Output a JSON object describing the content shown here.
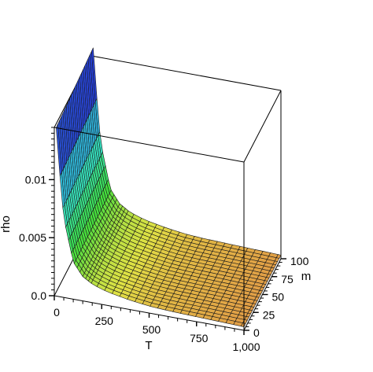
{
  "chart_data": {
    "type": "surface",
    "title": "",
    "function": "rho(T, m) — decays with T, nearly flat in m",
    "x_axis": {
      "label": "T",
      "range": [
        0,
        1000
      ],
      "ticks": [
        0,
        250,
        500,
        750,
        1000
      ],
      "tick_labels": [
        "0",
        "250",
        "500",
        "750",
        "1,000"
      ]
    },
    "y_axis": {
      "label": "m",
      "range": [
        0,
        100
      ],
      "ticks": [
        0,
        25,
        50,
        75,
        100
      ],
      "tick_labels": [
        "0",
        "25",
        "50",
        "75",
        "100"
      ]
    },
    "z_axis": {
      "label": "rho",
      "range": [
        0,
        0.0145
      ],
      "ticks": [
        0,
        0.005,
        0.01
      ],
      "tick_labels": [
        "0.0",
        "0.005",
        "0.01"
      ]
    },
    "sample_profile": {
      "T": [
        10,
        25,
        50,
        100,
        150,
        200,
        250,
        300,
        400,
        500,
        600,
        700,
        800,
        900,
        1000
      ],
      "rho": [
        0.0145,
        0.0113,
        0.0068,
        0.0032,
        0.0021,
        0.0016,
        0.0013,
        0.0011,
        0.0008,
        0.0006,
        0.0005,
        0.00045,
        0.0004,
        0.00035,
        0.0003
      ]
    },
    "colormap": "hue spectrum by height: red (low) → yellow → green → blue (high)",
    "box": true,
    "grid": "surface mesh",
    "legend": "none"
  }
}
